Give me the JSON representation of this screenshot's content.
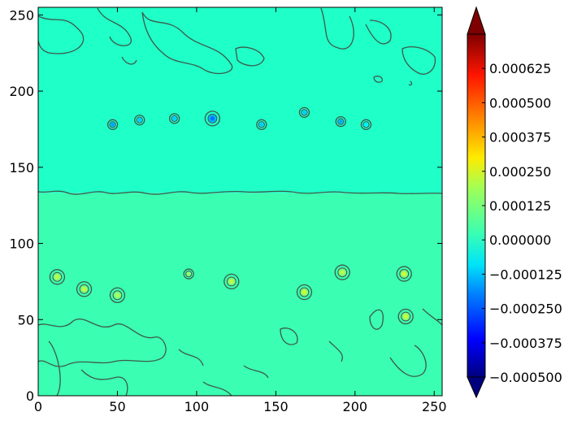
{
  "chart_data": {
    "type": "contour",
    "title": "",
    "xlabel": "",
    "ylabel": "",
    "xlim": [
      0,
      255
    ],
    "ylim": [
      0,
      255
    ],
    "x_ticks": [
      0,
      50,
      100,
      150,
      200,
      250
    ],
    "y_ticks": [
      0,
      50,
      100,
      150,
      200,
      250
    ],
    "x_tick_labels": [
      "0",
      "50",
      "100",
      "150",
      "200",
      "250"
    ],
    "y_tick_labels": [
      "0",
      "50",
      "100",
      "150",
      "200",
      "250"
    ],
    "colormap": "jet",
    "colorbar": {
      "min": -0.0005,
      "max": 0.00075,
      "extend": "both",
      "ticks": [
        0.000625,
        0.0005,
        0.000375,
        0.00025,
        0.000125,
        0.0,
        -0.000125,
        -0.00025,
        -0.000375,
        -0.0005
      ],
      "tick_labels": [
        "0.000625",
        "0.000500",
        "0.000375",
        "0.000250",
        "0.000125",
        "0.000000",
        "−0.000125",
        "−0.000250",
        "−0.000375",
        "−0.000500"
      ]
    },
    "regions": [
      {
        "name": "upper band",
        "y_range": [
          133,
          255
        ],
        "value": -3e-05,
        "color": "#1fffc8"
      },
      {
        "name": "lower band",
        "y_range": [
          0,
          133
        ],
        "value": 2e-05,
        "color": "#3affb2"
      }
    ],
    "boundary_y": 133,
    "features": [
      {
        "x": 47,
        "y": 178,
        "value": -0.00015
      },
      {
        "x": 64,
        "y": 181,
        "value": -0.0001
      },
      {
        "x": 86,
        "y": 182,
        "value": -0.0001
      },
      {
        "x": 110,
        "y": 182,
        "value": -0.0002
      },
      {
        "x": 141,
        "y": 178,
        "value": -0.0001
      },
      {
        "x": 168,
        "y": 186,
        "value": -0.0001
      },
      {
        "x": 191,
        "y": 180,
        "value": -0.00015
      },
      {
        "x": 207,
        "y": 178,
        "value": -5e-05
      },
      {
        "x": 12,
        "y": 78,
        "value": 0.0002
      },
      {
        "x": 29,
        "y": 70,
        "value": 0.0002
      },
      {
        "x": 50,
        "y": 66,
        "value": 0.00018
      },
      {
        "x": 95,
        "y": 80,
        "value": 0.00016
      },
      {
        "x": 122,
        "y": 75,
        "value": 0.0002
      },
      {
        "x": 168,
        "y": 68,
        "value": 0.00022
      },
      {
        "x": 192,
        "y": 81,
        "value": 0.0002
      },
      {
        "x": 231,
        "y": 80,
        "value": 0.00022
      },
      {
        "x": 232,
        "y": 52,
        "value": 0.00022
      }
    ]
  }
}
